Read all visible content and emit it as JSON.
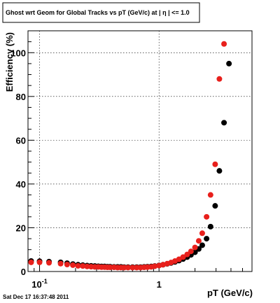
{
  "title": "Ghost wrt Geom for Global Tracks vs pT (GeV/c) at |  η | <= 1.0",
  "footer": "Sat Dec 17 16:37:48 2011",
  "chart_data": {
    "type": "scatter",
    "xlabel": "pT (GeV/c)",
    "ylabel": "Efficiency (%)",
    "xscale": "log",
    "xlim": [
      0.08,
      6.0
    ],
    "ylim": [
      0,
      110
    ],
    "grid": true,
    "y_ticks": [
      {
        "value": 0,
        "label": "0"
      },
      {
        "value": 20,
        "label": "20"
      },
      {
        "value": 40,
        "label": "40"
      },
      {
        "value": 60,
        "label": "60"
      },
      {
        "value": 80,
        "label": "80"
      },
      {
        "value": 100,
        "label": "100"
      }
    ],
    "x_ticks": [
      {
        "value": 0.1,
        "base": "10",
        "exp": "-1"
      },
      {
        "value": 1,
        "base": "1",
        "exp": ""
      }
    ],
    "series": [
      {
        "color": "#000000",
        "x": [
          0.085,
          0.1,
          0.12,
          0.15,
          0.17,
          0.19,
          0.21,
          0.23,
          0.25,
          0.27,
          0.29,
          0.31,
          0.33,
          0.35,
          0.37,
          0.39,
          0.42,
          0.45,
          0.48,
          0.51,
          0.55,
          0.6,
          0.65,
          0.7,
          0.75,
          0.8,
          0.86,
          0.92,
          1.0,
          1.08,
          1.17,
          1.26,
          1.36,
          1.47,
          1.59,
          1.72,
          1.85,
          2.0,
          2.15,
          2.3,
          2.5,
          2.7,
          2.95,
          3.2,
          3.5,
          3.85
        ],
        "y": [
          4.8,
          4.7,
          4.5,
          4.2,
          3.8,
          3.4,
          3.1,
          2.9,
          2.7,
          2.6,
          2.5,
          2.4,
          2.3,
          2.3,
          2.2,
          2.2,
          2.1,
          2.1,
          2.1,
          2.0,
          2.0,
          2.0,
          2.0,
          2.0,
          2.1,
          2.2,
          2.3,
          2.5,
          2.8,
          3.1,
          3.5,
          3.9,
          4.4,
          5.0,
          5.7,
          6.6,
          7.6,
          8.8,
          10.3,
          12.0,
          15.0,
          20.5,
          30.0,
          46.0,
          68.0,
          95.0
        ]
      },
      {
        "color": "#e8201c",
        "x": [
          0.085,
          0.1,
          0.12,
          0.15,
          0.17,
          0.19,
          0.21,
          0.23,
          0.25,
          0.27,
          0.29,
          0.31,
          0.33,
          0.35,
          0.37,
          0.39,
          0.42,
          0.45,
          0.48,
          0.51,
          0.55,
          0.6,
          0.65,
          0.7,
          0.75,
          0.8,
          0.86,
          0.92,
          1.0,
          1.08,
          1.17,
          1.26,
          1.36,
          1.47,
          1.59,
          1.72,
          1.85,
          2.0,
          2.15,
          2.3,
          2.5,
          2.7,
          2.95,
          3.2,
          3.5
        ],
        "y": [
          4.2,
          4.2,
          4.0,
          3.6,
          3.2,
          2.9,
          2.6,
          2.5,
          2.3,
          2.2,
          2.1,
          2.1,
          2.0,
          2.0,
          1.9,
          1.9,
          1.9,
          1.8,
          1.8,
          1.8,
          1.8,
          1.8,
          1.8,
          1.8,
          1.9,
          2.0,
          2.1,
          2.4,
          2.7,
          3.1,
          3.6,
          4.1,
          4.8,
          5.6,
          6.6,
          7.8,
          9.2,
          11.0,
          14.0,
          17.5,
          25.0,
          35.0,
          49.0,
          88.0,
          104.0
        ]
      }
    ]
  }
}
